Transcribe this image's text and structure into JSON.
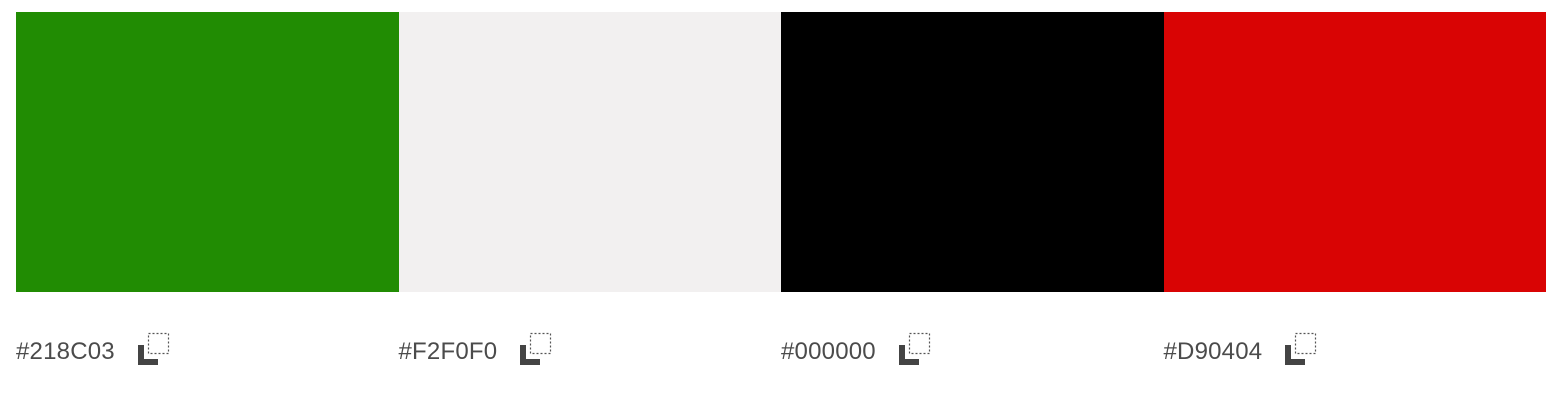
{
  "palette": {
    "swatches": [
      {
        "hex": "#218C03",
        "color": "#218C03",
        "copy_icon": "copy-icon"
      },
      {
        "hex": "#F2F0F0",
        "color": "#F2F0F0",
        "copy_icon": "copy-icon"
      },
      {
        "hex": "#000000",
        "color": "#000000",
        "copy_icon": "copy-icon"
      },
      {
        "hex": "#D90404",
        "color": "#D90404",
        "copy_icon": "copy-icon"
      }
    ]
  }
}
